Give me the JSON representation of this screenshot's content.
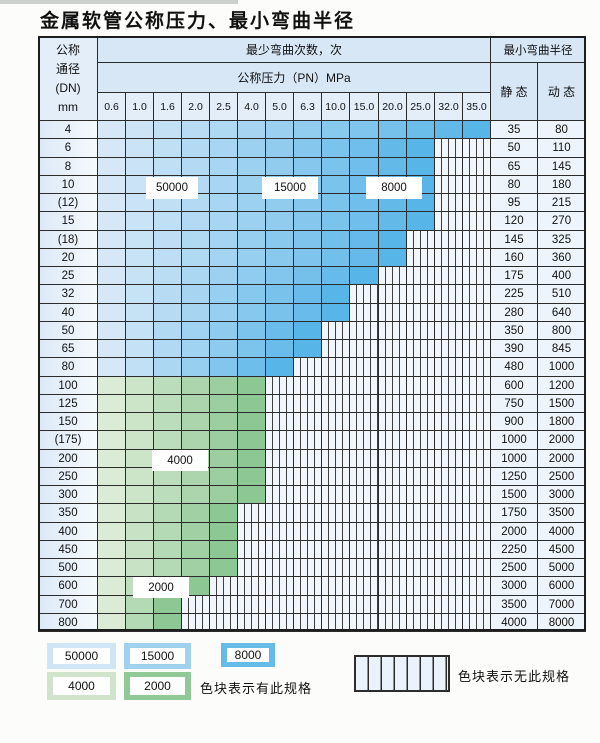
{
  "title": "金属软管公称压力、最小弯曲半径",
  "table": {
    "header": {
      "dn_lines": [
        "公称",
        "通径",
        "(DN)",
        "mm"
      ],
      "cycles_label": "最少弯曲次数，次",
      "pressure_label": "公称压力（PN）MPa",
      "radius_label": "最小弯曲半径",
      "static_label": "静 态",
      "dynamic_label": "动 态",
      "pressure_columns": [
        "0.6",
        "1.0",
        "1.6",
        "2.0",
        "2.5",
        "4.0",
        "5.0",
        "6.3",
        "10.0",
        "15.0",
        "20.0",
        "25.0",
        "32.0",
        "35.0"
      ]
    },
    "rows": [
      {
        "dn": "4",
        "zone": "blue",
        "colored_cols": 14,
        "static": "35",
        "dynamic": "80"
      },
      {
        "dn": "6",
        "zone": "blue",
        "colored_cols": 12,
        "static": "50",
        "dynamic": "110"
      },
      {
        "dn": "8",
        "zone": "blue",
        "colored_cols": 12,
        "static": "65",
        "dynamic": "145"
      },
      {
        "dn": "10",
        "zone": "blue",
        "colored_cols": 12,
        "static": "80",
        "dynamic": "180"
      },
      {
        "dn": "(12)",
        "zone": "blue",
        "colored_cols": 12,
        "static": "95",
        "dynamic": "215"
      },
      {
        "dn": "15",
        "zone": "blue",
        "colored_cols": 12,
        "static": "120",
        "dynamic": "270"
      },
      {
        "dn": "(18)",
        "zone": "blue",
        "colored_cols": 11,
        "static": "145",
        "dynamic": "325"
      },
      {
        "dn": "20",
        "zone": "blue",
        "colored_cols": 11,
        "static": "160",
        "dynamic": "360"
      },
      {
        "dn": "25",
        "zone": "blue",
        "colored_cols": 10,
        "static": "175",
        "dynamic": "400"
      },
      {
        "dn": "32",
        "zone": "blue",
        "colored_cols": 9,
        "static": "225",
        "dynamic": "510"
      },
      {
        "dn": "40",
        "zone": "blue",
        "colored_cols": 9,
        "static": "280",
        "dynamic": "640"
      },
      {
        "dn": "50",
        "zone": "blue",
        "colored_cols": 8,
        "static": "350",
        "dynamic": "800"
      },
      {
        "dn": "65",
        "zone": "blue",
        "colored_cols": 8,
        "static": "390",
        "dynamic": "845"
      },
      {
        "dn": "80",
        "zone": "blue",
        "colored_cols": 7,
        "static": "480",
        "dynamic": "1000"
      },
      {
        "dn": "100",
        "zone": "green",
        "colored_cols": 6,
        "static": "600",
        "dynamic": "1200"
      },
      {
        "dn": "125",
        "zone": "green",
        "colored_cols": 6,
        "static": "750",
        "dynamic": "1500"
      },
      {
        "dn": "150",
        "zone": "green",
        "colored_cols": 6,
        "static": "900",
        "dynamic": "1800"
      },
      {
        "dn": "(175)",
        "zone": "green",
        "colored_cols": 6,
        "static": "1000",
        "dynamic": "2000"
      },
      {
        "dn": "200",
        "zone": "green",
        "colored_cols": 6,
        "static": "1000",
        "dynamic": "2000"
      },
      {
        "dn": "250",
        "zone": "green",
        "colored_cols": 6,
        "static": "1250",
        "dynamic": "2500"
      },
      {
        "dn": "300",
        "zone": "green",
        "colored_cols": 6,
        "static": "1500",
        "dynamic": "3000"
      },
      {
        "dn": "350",
        "zone": "green",
        "colored_cols": 5,
        "static": "1750",
        "dynamic": "3500"
      },
      {
        "dn": "400",
        "zone": "green",
        "colored_cols": 5,
        "static": "2000",
        "dynamic": "4000"
      },
      {
        "dn": "450",
        "zone": "green",
        "colored_cols": 5,
        "static": "2250",
        "dynamic": "4500"
      },
      {
        "dn": "500",
        "zone": "green",
        "colored_cols": 5,
        "static": "2500",
        "dynamic": "5000"
      },
      {
        "dn": "600",
        "zone": "green",
        "colored_cols": 4,
        "static": "3000",
        "dynamic": "6000"
      },
      {
        "dn": "700",
        "zone": "green",
        "colored_cols": 3,
        "static": "3500",
        "dynamic": "7000"
      },
      {
        "dn": "800",
        "zone": "green",
        "colored_cols": 3,
        "static": "4000",
        "dynamic": "8000"
      }
    ],
    "zone_labels": [
      {
        "text": "50000"
      },
      {
        "text": "15000"
      },
      {
        "text": "8000"
      },
      {
        "text": "4000"
      },
      {
        "text": "2000"
      }
    ]
  },
  "legend": {
    "blocks": [
      {
        "label": "50000",
        "color": "#cfe4f5"
      },
      {
        "label": "15000",
        "color": "#a0d2f0"
      },
      {
        "label": "8000",
        "color": "#66bce9"
      },
      {
        "label": "4000",
        "color": "#cfe4ca"
      },
      {
        "label": "2000",
        "color": "#90c896"
      }
    ],
    "present_note": "色块表示有此规格",
    "absent_note": "色块表示无此规格"
  },
  "palette": {
    "blue_light": "#d6e8f7",
    "blue_dark": "#58b5e8",
    "green_light": "#dcebd5",
    "green_dark": "#8cc794",
    "header_bg": "#d7e7f5",
    "values_bg": "#e3eef9",
    "radius_bg": "#edf4fb",
    "striped_bg": "#f0f6fc",
    "grid": "#2c2c2c"
  }
}
